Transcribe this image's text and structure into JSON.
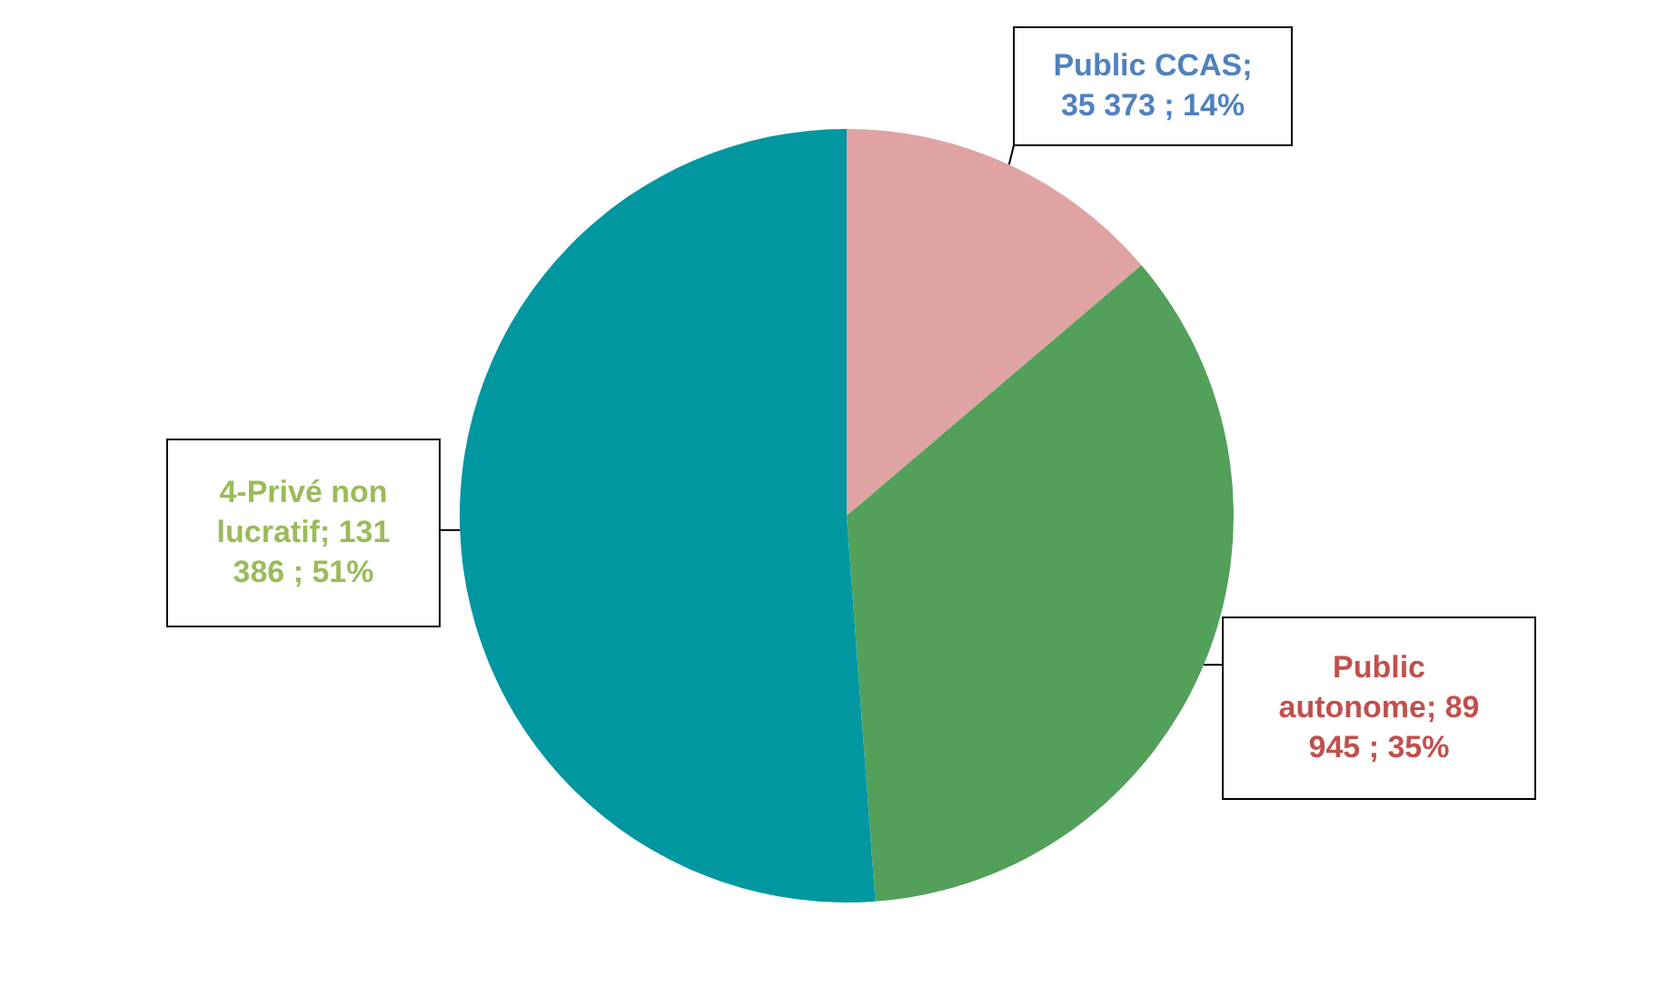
{
  "chart_data": {
    "type": "pie",
    "categories": [
      "Public CCAS",
      "Public autonome",
      "4-Privé non lucratif"
    ],
    "values": [
      35373,
      89945,
      131386
    ],
    "value_labels": [
      "; 35 373 ; 14%",
      "; 89 945 ; 35%",
      "; 131 386 ; 51%"
    ],
    "colors": [
      "#e0a3a3",
      "#52a05a",
      "#0097a0"
    ]
  }
}
